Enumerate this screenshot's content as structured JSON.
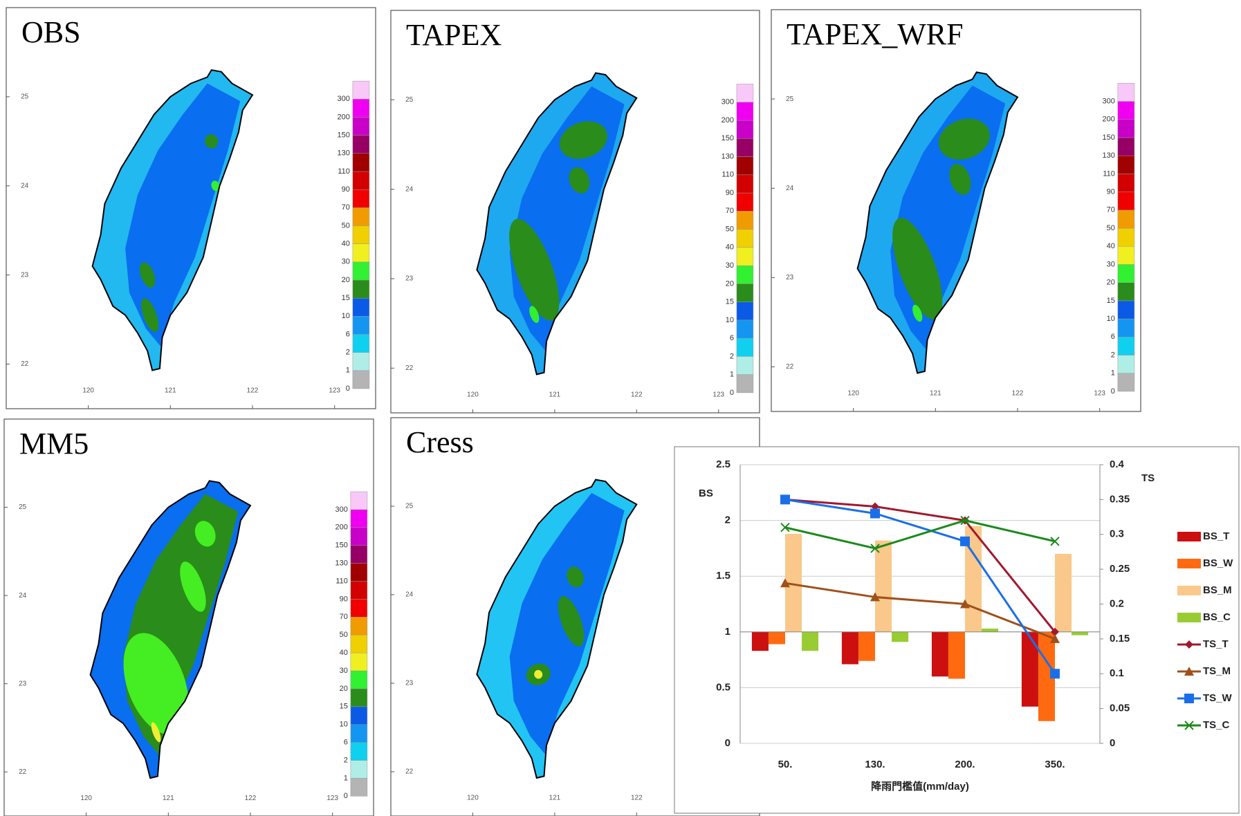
{
  "chart_data": [
    {
      "type": "map",
      "title": "OBS",
      "xlim": [
        119,
        123.5
      ],
      "ylim": [
        21.5,
        26
      ],
      "xticks": [
        120,
        121,
        122,
        123
      ],
      "yticks": [
        22,
        23,
        24,
        25
      ],
      "colorbar": {
        "levels": [
          0,
          1,
          2,
          6,
          10,
          15,
          20,
          30,
          40,
          50,
          70,
          90,
          110,
          130,
          150,
          200,
          300
        ],
        "colors": [
          "#b4b4b4",
          "#aeeee6",
          "#10d0f0",
          "#1496f0",
          "#0a5ae6",
          "#2a8c1a",
          "#32f032",
          "#f0f020",
          "#f0d000",
          "#f09c00",
          "#f00000",
          "#d20000",
          "#a00000",
          "#960064",
          "#c800c8",
          "#f000f0",
          "#f8c8f8"
        ]
      }
    },
    {
      "type": "map",
      "title": "TAPEX",
      "xlim": [
        119,
        123.5
      ],
      "ylim": [
        21.5,
        26
      ],
      "xticks": [
        120,
        121,
        122,
        123
      ],
      "yticks": [
        22,
        23,
        24,
        25
      ],
      "colorbar": {
        "levels": [
          0,
          1,
          2,
          6,
          10,
          15,
          20,
          30,
          40,
          50,
          70,
          90,
          110,
          130,
          150,
          200,
          300
        ],
        "colors": [
          "#b4b4b4",
          "#aeeee6",
          "#10d0f0",
          "#1496f0",
          "#0a5ae6",
          "#2a8c1a",
          "#32f032",
          "#f0f020",
          "#f0d000",
          "#f09c00",
          "#f00000",
          "#d20000",
          "#a00000",
          "#960064",
          "#c800c8",
          "#f000f0",
          "#f8c8f8"
        ]
      }
    },
    {
      "type": "map",
      "title": "TAPEX_WRF",
      "xlim": [
        119,
        123.5
      ],
      "ylim": [
        21.5,
        26
      ],
      "xticks": [
        120,
        121,
        122,
        123
      ],
      "yticks": [
        22,
        23,
        24,
        25
      ],
      "colorbar": {
        "levels": [
          0,
          1,
          2,
          6,
          10,
          15,
          20,
          30,
          40,
          50,
          70,
          90,
          110,
          130,
          150,
          200,
          300
        ],
        "colors": [
          "#b4b4b4",
          "#aeeee6",
          "#10d0f0",
          "#1496f0",
          "#0a5ae6",
          "#2a8c1a",
          "#32f032",
          "#f0f020",
          "#f0d000",
          "#f09c00",
          "#f00000",
          "#d20000",
          "#a00000",
          "#960064",
          "#c800c8",
          "#f000f0",
          "#f8c8f8"
        ]
      }
    },
    {
      "type": "map",
      "title": "MM5",
      "xlim": [
        119,
        123.5
      ],
      "ylim": [
        21.5,
        26
      ],
      "xticks": [
        120,
        121,
        122,
        123
      ],
      "yticks": [
        22,
        23,
        24,
        25
      ],
      "colorbar": {
        "levels": [
          0,
          1,
          2,
          6,
          10,
          15,
          20,
          30,
          40,
          50,
          70,
          90,
          110,
          130,
          150,
          200,
          300
        ],
        "colors": [
          "#b4b4b4",
          "#aeeee6",
          "#10d0f0",
          "#1496f0",
          "#0a5ae6",
          "#2a8c1a",
          "#32f032",
          "#f0f020",
          "#f0d000",
          "#f09c00",
          "#f00000",
          "#d20000",
          "#a00000",
          "#960064",
          "#c800c8",
          "#f000f0",
          "#f8c8f8"
        ]
      }
    },
    {
      "type": "map",
      "title": "Cress",
      "xlim": [
        119,
        123.5
      ],
      "ylim": [
        21.5,
        26
      ],
      "xticks": [
        120,
        121,
        122
      ],
      "yticks": [
        22,
        23,
        24,
        25
      ]
    },
    {
      "type": "combo",
      "categories": [
        "50.",
        "130.",
        "200.",
        "350."
      ],
      "x_label": "降雨門檻值(mm/day)",
      "y_label": "BS",
      "y2_label": "TS",
      "ylim": [
        0,
        2.5
      ],
      "yticks": [
        0,
        0.5,
        1,
        1.5,
        2,
        2.5
      ],
      "y2lim": [
        0,
        0.4
      ],
      "y2ticks": [
        0,
        0.05,
        0.1,
        0.15,
        0.2,
        0.25,
        0.3,
        0.35,
        0.4
      ],
      "bar_baseline": 1,
      "grid": true,
      "legend": "right",
      "series": [
        {
          "name": "BS_T",
          "kind": "bar",
          "color": "#cc1010",
          "values": [
            0.83,
            0.71,
            0.6,
            0.33
          ]
        },
        {
          "name": "BS_W",
          "kind": "bar",
          "color": "#ff6a10",
          "values": [
            0.89,
            0.74,
            0.58,
            0.2
          ]
        },
        {
          "name": "BS_M",
          "kind": "bar",
          "color": "#fac88a",
          "values": [
            1.88,
            1.82,
            1.95,
            1.7
          ]
        },
        {
          "name": "BS_C",
          "kind": "bar",
          "color": "#99cc33",
          "values": [
            0.83,
            0.91,
            1.03,
            0.97
          ]
        },
        {
          "name": "TS_T",
          "kind": "line",
          "axis": "y2",
          "marker": "diamond",
          "color": "#a0182e",
          "values": [
            0.35,
            0.34,
            0.32,
            0.16
          ]
        },
        {
          "name": "TS_M",
          "kind": "line",
          "axis": "y2",
          "marker": "triangle",
          "color": "#a0501a",
          "values": [
            0.23,
            0.21,
            0.2,
            0.15
          ]
        },
        {
          "name": "TS_W",
          "kind": "line",
          "axis": "y2",
          "marker": "square",
          "color": "#1a6fe8",
          "values": [
            0.35,
            0.33,
            0.29,
            0.1
          ]
        },
        {
          "name": "TS_C",
          "kind": "line",
          "axis": "y2",
          "marker": "x",
          "color": "#1a8a1a",
          "values": [
            0.31,
            0.28,
            0.32,
            0.29
          ]
        }
      ]
    }
  ]
}
